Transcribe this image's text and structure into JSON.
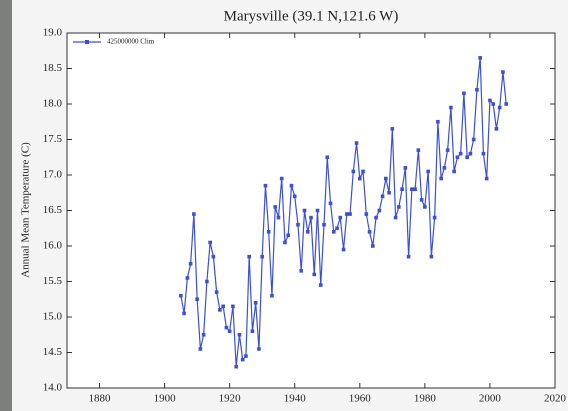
{
  "chart_data": {
    "type": "line",
    "title": "Marysville (39.1 N,121.6 W)",
    "y_label": "Annual Mean Temperature (C)",
    "x": [
      1905,
      1906,
      1907,
      1908,
      1909,
      1910,
      1911,
      1912,
      1913,
      1914,
      1915,
      1916,
      1917,
      1918,
      1919,
      1920,
      1921,
      1922,
      1923,
      1924,
      1925,
      1926,
      1927,
      1928,
      1929,
      1930,
      1931,
      1932,
      1933,
      1934,
      1935,
      1936,
      1937,
      1938,
      1939,
      1940,
      1941,
      1942,
      1943,
      1944,
      1945,
      1946,
      1947,
      1948,
      1949,
      1950,
      1951,
      1952,
      1953,
      1954,
      1955,
      1956,
      1957,
      1958,
      1959,
      1960,
      1961,
      1962,
      1963,
      1964,
      1965,
      1966,
      1967,
      1968,
      1969,
      1970,
      1971,
      1972,
      1973,
      1974,
      1975,
      1976,
      1977,
      1978,
      1979,
      1980,
      1981,
      1982,
      1983,
      1984,
      1985,
      1986,
      1987,
      1988,
      1989,
      1990,
      1991,
      1992,
      1993,
      1994,
      1995,
      1996,
      1997,
      1998,
      1999,
      2000,
      2001,
      2002,
      2003,
      2004,
      2005
    ],
    "series": [
      {
        "name": "425000000 Clim",
        "color": "#3b4fd8",
        "values": [
          15.3,
          15.05,
          15.55,
          15.75,
          16.45,
          15.25,
          14.55,
          14.75,
          15.5,
          16.05,
          15.85,
          15.35,
          15.1,
          15.15,
          14.85,
          14.8,
          15.15,
          14.3,
          14.75,
          14.4,
          14.45,
          15.85,
          14.8,
          15.2,
          14.55,
          15.85,
          16.85,
          16.2,
          15.3,
          16.55,
          16.4,
          16.95,
          16.05,
          16.15,
          16.85,
          16.7,
          16.3,
          15.65,
          16.5,
          16.2,
          16.4,
          15.6,
          16.5,
          15.45,
          16.3,
          17.25,
          16.6,
          16.2,
          16.25,
          16.4,
          15.95,
          16.45,
          16.45,
          17.05,
          17.45,
          16.95,
          17.05,
          16.45,
          16.2,
          16.0,
          16.4,
          16.5,
          16.7,
          16.95,
          16.75,
          17.65,
          16.4,
          16.55,
          16.8,
          17.1,
          15.85,
          16.8,
          16.8,
          17.35,
          16.65,
          16.55,
          17.05,
          15.85,
          16.4,
          17.75,
          16.95,
          17.1,
          17.35,
          17.95,
          17.05,
          17.25,
          17.3,
          18.15,
          17.25,
          17.3,
          17.5,
          18.2,
          18.65,
          17.3,
          16.95,
          18.05,
          18.0,
          17.65,
          17.95,
          18.45,
          18.0
        ]
      }
    ],
    "xlim": [
      1870,
      2020
    ],
    "xticks": [
      1880,
      1900,
      1920,
      1940,
      1960,
      1980,
      2000,
      2020
    ],
    "ylim": [
      14,
      19
    ],
    "yticks": [
      {
        "value": 14,
        "label": "14.0"
      },
      14.5,
      {
        "value": 15,
        "label": "15.0"
      },
      15.5,
      {
        "value": 16,
        "label": "16.0"
      },
      16.5,
      {
        "value": 17,
        "label": "17.0"
      },
      17.5,
      {
        "value": 18,
        "label": "18.0"
      },
      18.5,
      {
        "value": 19,
        "label": "19.0"
      }
    ],
    "grid": false,
    "legend": "upper left"
  }
}
